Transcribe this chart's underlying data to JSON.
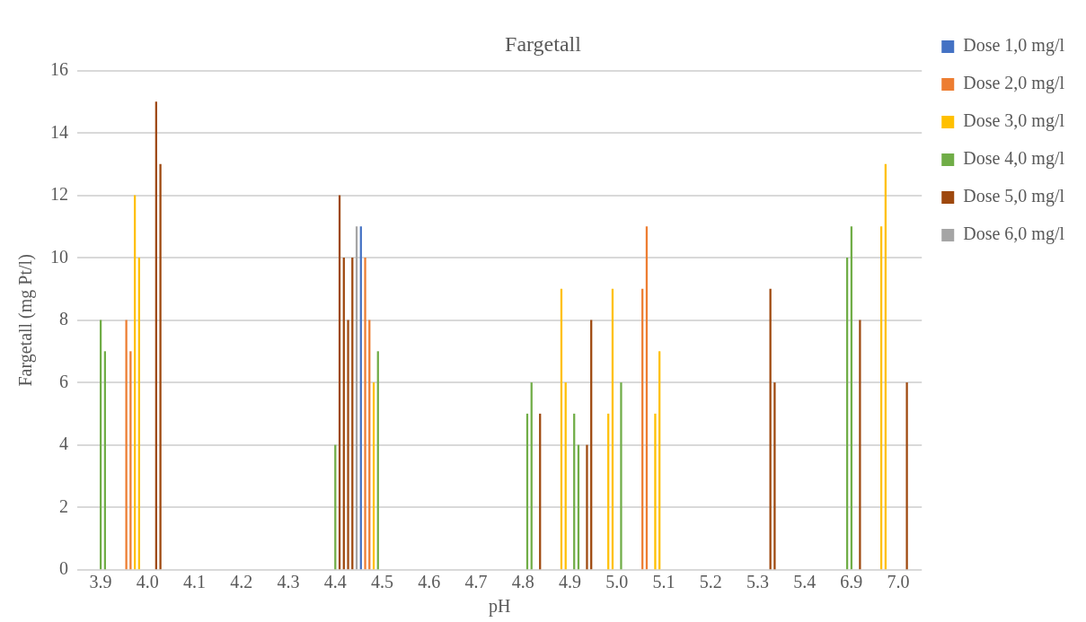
{
  "chart_data": {
    "type": "bar",
    "title": "Fargetall",
    "xlabel": "pH",
    "ylabel": "Fargetall (mg Pt/l)",
    "categories": [
      null,
      null,
      null,
      null,
      null,
      "3.9",
      null,
      null,
      null,
      null,
      null,
      null,
      null,
      null,
      null,
      null,
      "4.0",
      null,
      null,
      null,
      null,
      null,
      null,
      null,
      null,
      null,
      null,
      "4.1",
      null,
      null,
      null,
      null,
      null,
      null,
      null,
      null,
      null,
      null,
      "4.2",
      null,
      null,
      null,
      null,
      null,
      null,
      null,
      null,
      null,
      null,
      "4.3",
      null,
      null,
      null,
      null,
      null,
      null,
      null,
      null,
      null,
      null,
      "4.4",
      null,
      null,
      null,
      null,
      null,
      null,
      null,
      null,
      null,
      null,
      "4.5",
      null,
      null,
      null,
      null,
      null,
      null,
      null,
      null,
      null,
      null,
      "4.6",
      null,
      null,
      null,
      null,
      null,
      null,
      null,
      null,
      null,
      null,
      "4.7",
      null,
      null,
      null,
      null,
      null,
      null,
      null,
      null,
      null,
      null,
      "4.8",
      null,
      null,
      null,
      null,
      null,
      null,
      null,
      null,
      null,
      null,
      "4.9",
      null,
      null,
      null,
      null,
      null,
      null,
      null,
      null,
      null,
      null,
      "5.0",
      null,
      null,
      null,
      null,
      null,
      null,
      null,
      null,
      null,
      null,
      "5.1",
      null,
      null,
      null,
      null,
      null,
      null,
      null,
      null,
      null,
      null,
      "5.2",
      null,
      null,
      null,
      null,
      null,
      null,
      null,
      null,
      null,
      null,
      "5.3",
      null,
      null,
      null,
      null,
      null,
      null,
      null,
      null,
      null,
      null,
      "5.4",
      null,
      null,
      null,
      null,
      null,
      null,
      null,
      null,
      null,
      null,
      "6.9",
      null,
      null,
      null,
      null,
      null,
      null,
      null,
      null,
      null,
      null,
      "7.0",
      null,
      null,
      null,
      null,
      null
    ],
    "ylim": [
      0,
      16
    ],
    "yticks": [
      0,
      2,
      4,
      6,
      8,
      10,
      12,
      14,
      16
    ],
    "grid": "y",
    "legend": "right",
    "series": [
      {
        "name": "Dose 1,0 mg/l",
        "color": "#4472c4",
        "values": [
          null,
          null,
          null,
          null,
          null,
          null,
          null,
          null,
          null,
          null,
          null,
          null,
          null,
          null,
          null,
          null,
          null,
          null,
          null,
          null,
          null,
          null,
          null,
          null,
          null,
          null,
          null,
          null,
          null,
          null,
          null,
          null,
          null,
          null,
          null,
          null,
          null,
          null,
          null,
          null,
          null,
          null,
          null,
          null,
          null,
          null,
          null,
          null,
          null,
          null,
          null,
          null,
          null,
          null,
          null,
          null,
          null,
          null,
          null,
          null,
          null,
          null,
          null,
          null,
          null,
          null,
          11,
          null,
          null,
          null,
          null,
          null,
          null,
          null,
          null,
          null,
          null,
          null,
          null,
          null,
          null,
          null,
          null,
          null,
          null,
          null,
          null,
          null,
          null,
          null,
          null,
          null,
          null,
          null,
          null,
          null,
          null,
          null,
          null,
          null,
          null,
          null,
          null,
          null,
          null,
          null,
          null,
          null,
          null,
          null,
          null,
          null,
          null,
          null,
          null,
          null,
          null,
          null,
          null,
          null,
          null,
          null,
          null,
          null,
          null,
          null,
          null,
          null,
          null,
          null,
          null,
          null,
          null,
          null,
          null,
          null,
          null,
          null,
          null,
          null,
          null,
          null,
          null,
          null,
          null,
          null,
          null,
          null,
          null,
          null,
          null,
          null,
          null,
          null,
          null,
          null,
          null,
          null,
          null,
          null,
          null,
          null,
          null,
          null,
          null,
          null,
          null,
          null,
          null,
          null,
          null,
          null,
          null,
          null,
          null,
          null,
          null,
          null,
          null,
          null,
          null,
          null,
          null,
          null,
          null,
          null,
          null,
          null,
          null,
          null,
          null,
          null,
          null,
          null,
          null,
          null,
          null,
          null
        ]
      },
      {
        "name": "Dose 2,0 mg/l",
        "color": "#ed7d31",
        "values": [
          null,
          null,
          null,
          null,
          null,
          null,
          null,
          null,
          null,
          null,
          null,
          8,
          7,
          null,
          null,
          null,
          null,
          null,
          null,
          null,
          null,
          null,
          null,
          null,
          null,
          null,
          null,
          null,
          null,
          null,
          null,
          null,
          null,
          null,
          null,
          null,
          null,
          null,
          null,
          null,
          null,
          null,
          null,
          null,
          null,
          null,
          null,
          null,
          null,
          null,
          null,
          null,
          null,
          null,
          null,
          null,
          null,
          null,
          null,
          null,
          null,
          null,
          null,
          null,
          null,
          null,
          null,
          10,
          8,
          null,
          null,
          null,
          null,
          null,
          null,
          null,
          null,
          null,
          null,
          null,
          null,
          null,
          null,
          null,
          null,
          null,
          null,
          null,
          null,
          null,
          null,
          null,
          null,
          null,
          null,
          null,
          null,
          null,
          null,
          null,
          null,
          null,
          null,
          null,
          null,
          null,
          null,
          null,
          null,
          null,
          null,
          null,
          null,
          null,
          null,
          null,
          null,
          null,
          null,
          null,
          null,
          null,
          null,
          null,
          null,
          null,
          null,
          null,
          null,
          null,
          null,
          null,
          9,
          11,
          null,
          null,
          null,
          null,
          null,
          null,
          null,
          null,
          null,
          null,
          null,
          null,
          null,
          null,
          null,
          null,
          null,
          null,
          null,
          null,
          null,
          null,
          null,
          null,
          null,
          null,
          null,
          null,
          null,
          null,
          null,
          null,
          null,
          null,
          null,
          null,
          null,
          null,
          null,
          null,
          null,
          null,
          null,
          null,
          null,
          null,
          null,
          null,
          null,
          null,
          null,
          null,
          null,
          null,
          null,
          null,
          null,
          null,
          null,
          null,
          null,
          null,
          null,
          null
        ]
      },
      {
        "name": "Dose 3,0 mg/l",
        "color": "#ffc000",
        "values": [
          null,
          null,
          null,
          null,
          null,
          null,
          null,
          null,
          null,
          null,
          null,
          null,
          null,
          12,
          10,
          null,
          null,
          null,
          null,
          null,
          null,
          null,
          null,
          null,
          null,
          null,
          null,
          null,
          null,
          null,
          null,
          null,
          null,
          null,
          null,
          null,
          null,
          null,
          null,
          null,
          null,
          null,
          null,
          null,
          null,
          null,
          null,
          null,
          null,
          null,
          null,
          null,
          null,
          null,
          null,
          null,
          null,
          null,
          null,
          null,
          null,
          null,
          null,
          null,
          null,
          null,
          null,
          null,
          null,
          6,
          null,
          null,
          null,
          null,
          null,
          null,
          null,
          null,
          null,
          null,
          null,
          null,
          null,
          null,
          null,
          null,
          null,
          null,
          null,
          null,
          null,
          null,
          null,
          null,
          null,
          null,
          null,
          null,
          null,
          null,
          null,
          null,
          null,
          null,
          null,
          null,
          null,
          null,
          null,
          null,
          null,
          null,
          null,
          9,
          6,
          null,
          null,
          null,
          null,
          null,
          null,
          null,
          null,
          null,
          5,
          9,
          null,
          null,
          null,
          null,
          null,
          null,
          null,
          null,
          null,
          5,
          7,
          null,
          null,
          null,
          null,
          null,
          null,
          null,
          null,
          null,
          null,
          null,
          null,
          null,
          null,
          null,
          null,
          null,
          null,
          null,
          null,
          null,
          null,
          null,
          null,
          null,
          null,
          null,
          null,
          null,
          null,
          null,
          null,
          null,
          null,
          null,
          null,
          null,
          null,
          null,
          null,
          null,
          null,
          null,
          null,
          null,
          null,
          null,
          null,
          null,
          null,
          null,
          11,
          13,
          null,
          null,
          null,
          null,
          null,
          null,
          null,
          null
        ]
      },
      {
        "name": "Dose 4,0 mg/l",
        "color": "#70ad47",
        "values": [
          null,
          null,
          null,
          null,
          null,
          8,
          7,
          null,
          null,
          null,
          null,
          null,
          null,
          null,
          null,
          null,
          null,
          null,
          null,
          null,
          null,
          null,
          null,
          null,
          null,
          null,
          null,
          null,
          null,
          null,
          null,
          null,
          null,
          null,
          null,
          null,
          null,
          null,
          null,
          null,
          null,
          null,
          null,
          null,
          null,
          null,
          null,
          null,
          null,
          null,
          null,
          null,
          null,
          null,
          null,
          null,
          null,
          null,
          null,
          null,
          4,
          null,
          null,
          null,
          null,
          null,
          null,
          null,
          null,
          null,
          7,
          null,
          null,
          null,
          null,
          null,
          null,
          null,
          null,
          null,
          null,
          null,
          null,
          null,
          null,
          null,
          null,
          null,
          null,
          null,
          null,
          null,
          null,
          null,
          null,
          null,
          null,
          null,
          null,
          null,
          null,
          null,
          null,
          null,
          null,
          5,
          6,
          null,
          null,
          null,
          null,
          null,
          null,
          null,
          null,
          null,
          5,
          4,
          null,
          null,
          null,
          null,
          null,
          null,
          null,
          null,
          null,
          6,
          null,
          null,
          null,
          null,
          null,
          null,
          null,
          null,
          null,
          null,
          null,
          null,
          null,
          null,
          null,
          null,
          null,
          null,
          null,
          null,
          null,
          null,
          null,
          null,
          null,
          null,
          null,
          null,
          null,
          null,
          null,
          null,
          null,
          null,
          null,
          null,
          null,
          null,
          null,
          null,
          null,
          null,
          null,
          null,
          null,
          null,
          null,
          null,
          null,
          null,
          null,
          null,
          10,
          11,
          null,
          null,
          null,
          null,
          null,
          null,
          null,
          null,
          null,
          null,
          null,
          null,
          null,
          null,
          null,
          null
        ]
      },
      {
        "name": "Dose 5,0 mg/l",
        "color": "#9e480e",
        "values": [
          null,
          null,
          null,
          null,
          null,
          null,
          null,
          null,
          null,
          null,
          null,
          null,
          null,
          null,
          null,
          null,
          null,
          null,
          15,
          13,
          null,
          null,
          null,
          null,
          null,
          null,
          null,
          null,
          null,
          null,
          null,
          null,
          null,
          null,
          null,
          null,
          null,
          null,
          null,
          null,
          null,
          null,
          null,
          null,
          null,
          null,
          null,
          null,
          null,
          null,
          null,
          null,
          null,
          null,
          null,
          null,
          null,
          null,
          null,
          null,
          null,
          12,
          10,
          8,
          10,
          null,
          null,
          null,
          null,
          null,
          null,
          null,
          null,
          null,
          null,
          null,
          null,
          null,
          null,
          null,
          null,
          null,
          null,
          null,
          null,
          null,
          null,
          null,
          null,
          null,
          null,
          null,
          null,
          null,
          null,
          null,
          null,
          null,
          null,
          null,
          null,
          null,
          null,
          null,
          null,
          null,
          null,
          null,
          5,
          null,
          null,
          null,
          null,
          null,
          null,
          null,
          null,
          null,
          null,
          4,
          8,
          null,
          null,
          null,
          null,
          null,
          null,
          null,
          null,
          null,
          null,
          null,
          null,
          null,
          null,
          null,
          null,
          null,
          null,
          null,
          null,
          null,
          null,
          null,
          null,
          null,
          null,
          null,
          null,
          null,
          null,
          null,
          null,
          null,
          null,
          null,
          null,
          null,
          null,
          null,
          null,
          null,
          9,
          6,
          null,
          null,
          null,
          null,
          null,
          null,
          null,
          null,
          null,
          null,
          null,
          null,
          null,
          null,
          null,
          null,
          null,
          null,
          null,
          8,
          null,
          null,
          null,
          null,
          null,
          null,
          null,
          null,
          null,
          null,
          6,
          null,
          null,
          null
        ]
      },
      {
        "name": "Dose 6,0 mg/l",
        "color": "#a5a5a5",
        "values": [
          null,
          null,
          null,
          null,
          null,
          null,
          null,
          null,
          null,
          null,
          null,
          null,
          null,
          null,
          null,
          null,
          null,
          null,
          null,
          null,
          null,
          null,
          null,
          null,
          null,
          null,
          null,
          null,
          null,
          null,
          null,
          null,
          null,
          null,
          null,
          null,
          null,
          null,
          null,
          null,
          null,
          null,
          null,
          null,
          null,
          null,
          null,
          null,
          null,
          null,
          null,
          null,
          null,
          null,
          null,
          null,
          null,
          null,
          null,
          null,
          null,
          null,
          null,
          null,
          null,
          11,
          null,
          null,
          null,
          null,
          null,
          null,
          null,
          null,
          null,
          null,
          null,
          null,
          null,
          null,
          null,
          null,
          null,
          null,
          null,
          null,
          null,
          null,
          null,
          null,
          null,
          null,
          null,
          null,
          null,
          null,
          null,
          null,
          null,
          null,
          null,
          null,
          null,
          null,
          null,
          null,
          null,
          null,
          null,
          null,
          null,
          null,
          null,
          null,
          null,
          null,
          null,
          null,
          null,
          null,
          null,
          null,
          null,
          null,
          null,
          null,
          null,
          null,
          null,
          null,
          null,
          null,
          null,
          null,
          null,
          null,
          null,
          null,
          null,
          null,
          null,
          null,
          null,
          null,
          null,
          null,
          null,
          null,
          null,
          null,
          null,
          null,
          null,
          null,
          null,
          null,
          null,
          null,
          null,
          null,
          null,
          null,
          null,
          null,
          null,
          null,
          null,
          null,
          null,
          null,
          null,
          null,
          null,
          null,
          null,
          null,
          null,
          null,
          null,
          null,
          null,
          null,
          null,
          null,
          null,
          null,
          null,
          null,
          null,
          null,
          null,
          null,
          null,
          null,
          null,
          null,
          null,
          null
        ]
      }
    ]
  }
}
